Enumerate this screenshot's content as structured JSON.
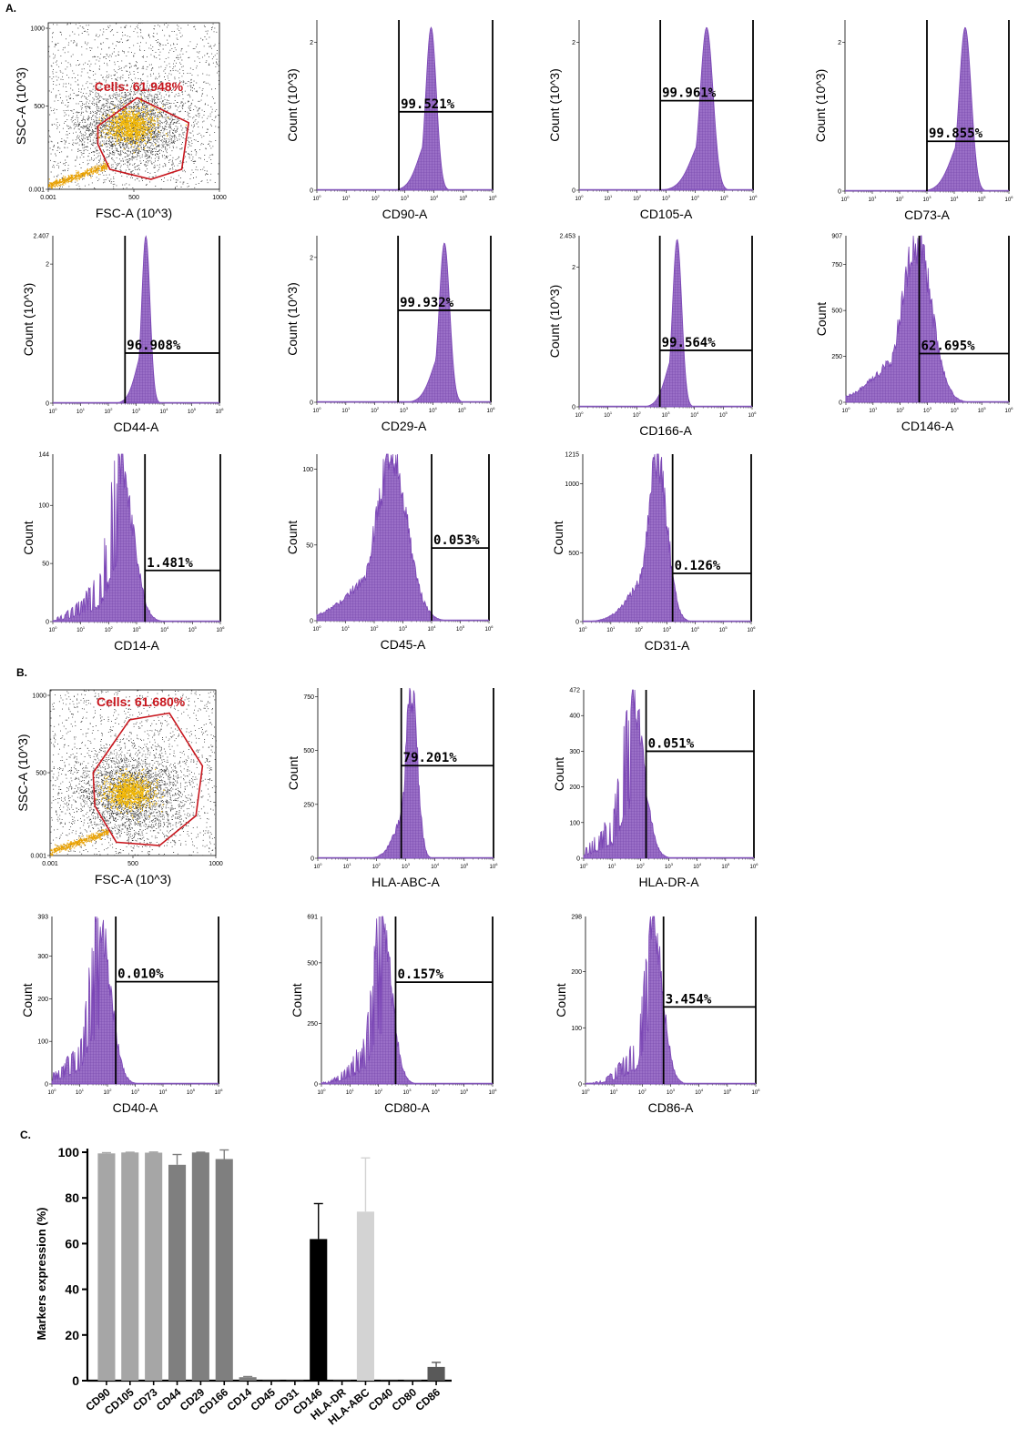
{
  "panel_labels": [
    "A.",
    "B.",
    "C."
  ],
  "chart_data": [
    {
      "type": "scatter",
      "id": "A-scatter",
      "xlabel": "FSC-A (10^3)",
      "ylabel": "SSC-A (10^3)",
      "xticks": [
        "0.001",
        "500",
        "1000"
      ],
      "yticks": [
        "0.001",
        "500",
        "1000"
      ],
      "gate_label": "Cells: 61.948%",
      "gate_value": 61.948,
      "gate_color": "#c8161d"
    },
    {
      "type": "area",
      "id": "CD90",
      "xlabel": "CD90-A",
      "ylabel": "Count (10^3)",
      "yticks": [
        "0",
        "2"
      ],
      "ymax": 2.3,
      "x_scale": "log",
      "xlim": [
        1,
        1000000
      ],
      "peak": 3.9,
      "width": 0.18,
      "height": 2.2,
      "gate_start": 2.8,
      "gate_pct": "99.521%",
      "gate_y": 1.06
    },
    {
      "type": "area",
      "id": "CD105",
      "xlabel": "CD105-A",
      "ylabel": "Count (10^3)",
      "yticks": [
        "0",
        "2"
      ],
      "ymax": 2.3,
      "x_scale": "log",
      "xlim": [
        1,
        1000000
      ],
      "peak": 4.4,
      "width": 0.22,
      "height": 2.2,
      "gate_start": 2.8,
      "gate_pct": "99.961%",
      "gate_y": 1.21
    },
    {
      "type": "area",
      "id": "CD73",
      "xlabel": "CD73-A",
      "ylabel": "Count (10^3)",
      "yticks": [
        "0",
        "2"
      ],
      "ymax": 2.3,
      "x_scale": "log",
      "xlim": [
        1,
        1000000
      ],
      "peak": 4.4,
      "width": 0.22,
      "height": 2.2,
      "gate_start": 3.0,
      "gate_pct": "99.855%",
      "gate_y": 0.67
    },
    {
      "type": "area",
      "id": "CD44",
      "xlabel": "CD44-A",
      "ylabel": "Count (10^3)",
      "yticks": [
        "0",
        "2"
      ],
      "ymax_label": "2.407",
      "ymax": 2.407,
      "x_scale": "log",
      "xlim": [
        1,
        1000000
      ],
      "peak": 3.35,
      "width": 0.15,
      "height": 2.4,
      "gate_start": 2.6,
      "gate_pct": "96.908%",
      "gate_y": 0.72
    },
    {
      "type": "area",
      "id": "CD29",
      "xlabel": "CD29-A",
      "ylabel": "Count (10^3)",
      "yticks": [
        "0",
        "2"
      ],
      "ymax": 2.3,
      "x_scale": "log",
      "xlim": [
        1,
        1000000
      ],
      "peak": 4.4,
      "width": 0.18,
      "height": 2.2,
      "gate_start": 2.8,
      "gate_pct": "99.932%",
      "gate_y": 1.27
    },
    {
      "type": "area",
      "id": "CD166",
      "xlabel": "CD166-A",
      "ylabel": "Count (10^3)",
      "yticks": [
        "0",
        "2"
      ],
      "ymax_label": "2.453",
      "ymax": 2.453,
      "x_scale": "log",
      "xlim": [
        1,
        1000000
      ],
      "peak": 3.4,
      "width": 0.16,
      "height": 2.4,
      "gate_start": 2.8,
      "gate_pct": "99.564%",
      "gate_y": 0.81
    },
    {
      "type": "area",
      "id": "CD146",
      "xlabel": "CD146-A",
      "ylabel": "Count",
      "yticks": [
        "0",
        "250",
        "500",
        "750"
      ],
      "ymax_label": "907",
      "ymax": 907,
      "x_scale": "log",
      "xlim": [
        1,
        1000000
      ],
      "peak": 2.6,
      "width": 0.55,
      "height": 880,
      "gate_start": 2.7,
      "gate_pct": "62.695%",
      "gate_y": 265
    },
    {
      "type": "area",
      "id": "CD14",
      "xlabel": "CD14-A",
      "ylabel": "Count",
      "yticks": [
        "0",
        "50",
        "100"
      ],
      "ymax_label": "144",
      "ymax": 144,
      "x_scale": "log",
      "xlim": [
        1,
        1000000
      ],
      "peak": 2.4,
      "width": 0.45,
      "height": 138,
      "gate_start": 3.3,
      "gate_pct": "1.481%",
      "gate_y": 44
    },
    {
      "type": "area",
      "id": "CD45",
      "xlabel": "CD45-A",
      "ylabel": "Count",
      "yticks": [
        "0",
        "50",
        "100"
      ],
      "ymax": 110,
      "x_scale": "log",
      "xlim": [
        1,
        1000000
      ],
      "peak": 2.6,
      "width": 0.55,
      "height": 107,
      "gate_start": 4.0,
      "gate_pct": "0.053%",
      "gate_y": 48
    },
    {
      "type": "area",
      "id": "CD31",
      "xlabel": "CD31-A",
      "ylabel": "Count",
      "yticks": [
        "0",
        "500",
        "1000"
      ],
      "ymax_label": "1215",
      "ymax": 1215,
      "x_scale": "log",
      "xlim": [
        1,
        1000000
      ],
      "peak": 2.65,
      "width": 0.35,
      "height": 1200,
      "gate_start": 3.2,
      "gate_pct": "0.126%",
      "gate_y": 350
    },
    {
      "type": "scatter",
      "id": "B-scatter",
      "xlabel": "FSC-A (10^3)",
      "ylabel": "SSC-A (10^3)",
      "xticks": [
        "0.001",
        "500",
        "1000"
      ],
      "yticks": [
        "0.001",
        "500",
        "1000"
      ],
      "gate_label": "Cells: 61.680%",
      "gate_value": 61.68,
      "gate_color": "#c8161d"
    },
    {
      "type": "area",
      "id": "HLA-ABC",
      "xlabel": "HLA-ABC-A",
      "ylabel": "Count",
      "yticks": [
        "0",
        "250",
        "500",
        "750"
      ],
      "ymax": 790,
      "x_scale": "log",
      "xlim": [
        1,
        1000000
      ],
      "peak": 3.2,
      "width": 0.2,
      "height": 780,
      "gate_start": 2.85,
      "gate_pct": "79.201%",
      "gate_y": 430
    },
    {
      "type": "area",
      "id": "HLA-DR",
      "xlabel": "HLA-DR-A",
      "ylabel": "Count",
      "yticks": [
        "0",
        "100",
        "200",
        "300",
        "400"
      ],
      "ymax_label": "472",
      "ymax": 472,
      "x_scale": "log",
      "xlim": [
        1,
        1000000
      ],
      "peak": 1.7,
      "width": 0.4,
      "height": 460,
      "gate_start": 2.2,
      "gate_pct": "0.051%",
      "gate_y": 300
    },
    {
      "type": "area",
      "id": "CD40",
      "xlabel": "CD40-A",
      "ylabel": "Count",
      "yticks": [
        "0",
        "100",
        "200",
        "300"
      ],
      "ymax_label": "393",
      "ymax": 393,
      "x_scale": "log",
      "xlim": [
        1,
        1000000
      ],
      "peak": 1.7,
      "width": 0.4,
      "height": 380,
      "gate_start": 2.3,
      "gate_pct": "0.010%",
      "gate_y": 240
    },
    {
      "type": "area",
      "id": "CD80",
      "xlabel": "CD80-A",
      "ylabel": "Count",
      "yticks": [
        "0",
        "250",
        "500"
      ],
      "ymax_label": "691",
      "ymax": 691,
      "x_scale": "log",
      "xlim": [
        1,
        1000000
      ],
      "peak": 2.1,
      "width": 0.35,
      "height": 680,
      "gate_start": 2.6,
      "gate_pct": "0.157%",
      "gate_y": 420
    },
    {
      "type": "area",
      "id": "CD86",
      "xlabel": "CD86-A",
      "ylabel": "Count",
      "yticks": [
        "0",
        "100",
        "200"
      ],
      "ymax_label": "298",
      "ymax": 298,
      "x_scale": "log",
      "xlim": [
        1,
        1000000
      ],
      "peak": 2.35,
      "width": 0.35,
      "height": 295,
      "gate_start": 2.75,
      "gate_pct": "3.454%",
      "gate_y": 137
    },
    {
      "type": "bar",
      "id": "C-bar",
      "ylabel": "Markers expression (%)",
      "yticks": [
        0,
        20,
        40,
        60,
        80,
        100
      ],
      "ylim": [
        0,
        100
      ],
      "categories": [
        "CD90",
        "CD105",
        "CD73",
        "CD44",
        "CD29",
        "CD166",
        "CD14",
        "CD45",
        "CD31",
        "CD146",
        "HLA-DR",
        "HLA-ABC",
        "CD40",
        "CD80",
        "CD86"
      ],
      "values": [
        99.5,
        99.9,
        99.8,
        94.5,
        99.9,
        97.0,
        1.5,
        0.1,
        0.1,
        62.0,
        0.1,
        74.0,
        0.1,
        0.2,
        6.0
      ],
      "errors": [
        0.3,
        0.1,
        0.3,
        4.5,
        0.1,
        4.0,
        0.3,
        0,
        0,
        15.5,
        0,
        23.5,
        0,
        0,
        2.0
      ],
      "colors": [
        "#a6a6a6",
        "#a6a6a6",
        "#a6a6a6",
        "#7f7f7f",
        "#7f7f7f",
        "#7f7f7f",
        "#7f7f7f",
        "#7f7f7f",
        "#7f7f7f",
        "#000000",
        "#7f7f7f",
        "#d3d3d3",
        "#7f7f7f",
        "#7f7f7f",
        "#595959"
      ]
    }
  ]
}
